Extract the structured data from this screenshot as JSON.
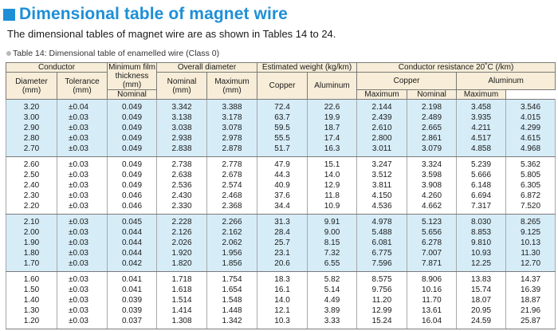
{
  "header": {
    "title": "Dimensional table of magnet wire",
    "subtitle": "The dimensional tables of magnet wire are as shown in Tables 14 to 24.",
    "caption": "Table 14: Dimensional table of enamelled wire (Class 0)"
  },
  "colors": {
    "accent": "#1e8fd6",
    "header_bg": "#f7edd8",
    "row_blue": "#d6edf8"
  },
  "table": {
    "headers": {
      "conductor": "Conductor",
      "diameter": "Diameter (mm)",
      "tolerance": "Tolerance (mm)",
      "min_film": "Minimum film thickness (mm)",
      "overall_diameter": "Overall diameter",
      "nominal": "Nominal (mm)",
      "maximum_mm": "Maximum (mm)",
      "estimated_weight": "Estimated weight (kg/km)",
      "copper": "Copper",
      "aluminum": "Aluminum",
      "conductor_resistance": "Conductor resistance  20˚C  (/km)",
      "res_copper": "Copper",
      "res_aluminum": "Aluminum",
      "res_nominal": "Nominal",
      "res_maximum": "Maximum",
      "res_nominal2": "Nominal",
      "res_maximum2": "Maximum"
    },
    "groups": [
      {
        "shade": "blue",
        "rows": [
          [
            "3.20",
            "±0.04",
            "0.049",
            "3.342",
            "3.388",
            "72.4",
            "22.6",
            "2.144",
            "2.198",
            "3.458",
            "3.546"
          ],
          [
            "3.00",
            "±0.03",
            "0.049",
            "3.138",
            "3.178",
            "63.7",
            "19.9",
            "2.439",
            "2.489",
            "3.935",
            "4.015"
          ],
          [
            "2.90",
            "±0.03",
            "0.049",
            "3.038",
            "3.078",
            "59.5",
            "18.7",
            "2.610",
            "2.665",
            "4.211",
            "4.299"
          ],
          [
            "2.80",
            "±0.03",
            "0.049",
            "2.938",
            "2.978",
            "55.5",
            "17.4",
            "2.800",
            "2.861",
            "4.517",
            "4.615"
          ],
          [
            "2.70",
            "±0.03",
            "0.049",
            "2.838",
            "2.878",
            "51.7",
            "16.3",
            "3.011",
            "3.079",
            "4.858",
            "4.968"
          ]
        ]
      },
      {
        "shade": "white",
        "rows": [
          [
            "2.60",
            "±0.03",
            "0.049",
            "2.738",
            "2.778",
            "47.9",
            "15.1",
            "3.247",
            "3.324",
            "5.239",
            "5.362"
          ],
          [
            "2.50",
            "±0.03",
            "0.049",
            "2.638",
            "2.678",
            "44.3",
            "14.0",
            "3.512",
            "3.598",
            "5.666",
            "5.805"
          ],
          [
            "2.40",
            "±0.03",
            "0.049",
            "2.536",
            "2.574",
            "40.9",
            "12.9",
            "3.811",
            "3.908",
            "6.148",
            "6.305"
          ],
          [
            "2.30",
            "±0.03",
            "0.046",
            "2.430",
            "2.468",
            "37.6",
            "11.8",
            "4.150",
            "4.260",
            "6.694",
            "6.872"
          ],
          [
            "2.20",
            "±0.03",
            "0.046",
            "2.330",
            "2.368",
            "34.4",
            "10.9",
            "4.536",
            "4.662",
            "7.317",
            "7.520"
          ]
        ]
      },
      {
        "shade": "blue",
        "rows": [
          [
            "2.10",
            "±0.03",
            "0.045",
            "2.228",
            "2.266",
            "31.3",
            "9.91",
            "4.978",
            "5.123",
            "8.030",
            "8.265"
          ],
          [
            "2.00",
            "±0.03",
            "0.044",
            "2.126",
            "2.162",
            "28.4",
            "9.00",
            "5.488",
            "5.656",
            "8.853",
            "9.125"
          ],
          [
            "1.90",
            "±0.03",
            "0.044",
            "2.026",
            "2.062",
            "25.7",
            "8.15",
            "6.081",
            "6.278",
            "9.810",
            "10.13"
          ],
          [
            "1.80",
            "±0.03",
            "0.044",
            "1.920",
            "1.956",
            "23.1",
            "7.32",
            "6.775",
            "7.007",
            "10.93",
            "11.30"
          ],
          [
            "1.70",
            "±0.03",
            "0.042",
            "1.820",
            "1.856",
            "20.6",
            "6.55",
            "7.596",
            "7.871",
            "12.25",
            "12.70"
          ]
        ]
      },
      {
        "shade": "white",
        "rows": [
          [
            "1.60",
            "±0.03",
            "0.041",
            "1.718",
            "1.754",
            "18.3",
            "5.82",
            "8.575",
            "8.906",
            "13.83",
            "14.37"
          ],
          [
            "1.50",
            "±0.03",
            "0.041",
            "1.618",
            "1.654",
            "16.1",
            "5.14",
            "9.756",
            "10.16",
            "15.74",
            "16.39"
          ],
          [
            "1.40",
            "±0.03",
            "0.039",
            "1.514",
            "1.548",
            "14.0",
            "4.49",
            "11.20",
            "11.70",
            "18.07",
            "18.87"
          ],
          [
            "1.30",
            "±0.03",
            "0.039",
            "1.414",
            "1.448",
            "12.1",
            "3.89",
            "12.99",
            "13.61",
            "20.95",
            "21.96"
          ],
          [
            "1.20",
            "±0.03",
            "0.037",
            "1.308",
            "1.342",
            "10.3",
            "3.33",
            "15.24",
            "16.04",
            "24.59",
            "25.87"
          ]
        ]
      }
    ]
  }
}
